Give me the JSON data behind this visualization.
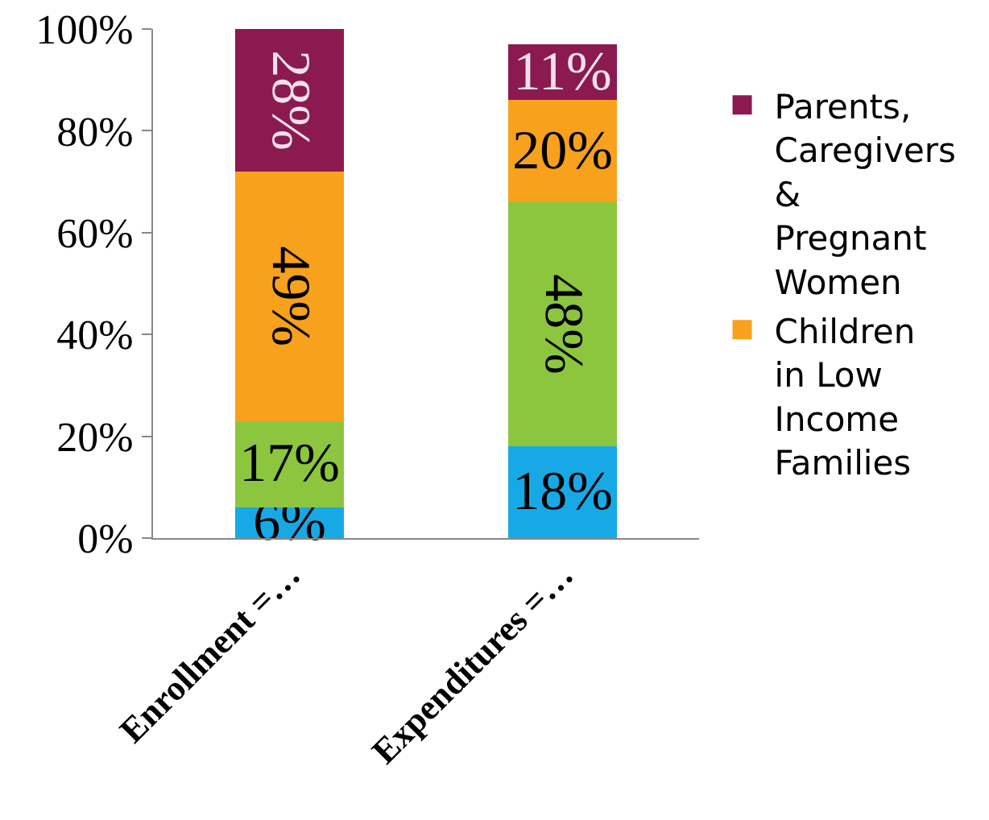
{
  "chart_data": {
    "type": "bar",
    "stacked": true,
    "categories": [
      "Enrollment =…",
      "Expenditures =…"
    ],
    "series": [
      {
        "color": "#17a9e6",
        "values": [
          6,
          18
        ],
        "value_labels": [
          "6%",
          "18%"
        ]
      },
      {
        "color": "#8cc63e",
        "values": [
          17,
          48
        ],
        "value_labels": [
          "17%",
          "48%"
        ]
      },
      {
        "name": "Children in Low Income Families",
        "color": "#f8a11c",
        "values": [
          49,
          20
        ],
        "value_labels": [
          "49%",
          "20%"
        ]
      },
      {
        "name": "Parents, Caregivers & Pregnant Women",
        "color": "#8b1a50",
        "values": [
          28,
          11
        ],
        "value_labels": [
          "28%",
          "11%"
        ]
      }
    ],
    "ylim": [
      0,
      100
    ],
    "yticks": [
      {
        "value": 0,
        "label": "0%"
      },
      {
        "value": 20,
        "label": "20%"
      },
      {
        "value": 40,
        "label": "40%"
      },
      {
        "value": 60,
        "label": "60%"
      },
      {
        "value": 80,
        "label": "80%"
      },
      {
        "value": 100,
        "label": "100%"
      }
    ],
    "grid": false,
    "legend": "right"
  }
}
